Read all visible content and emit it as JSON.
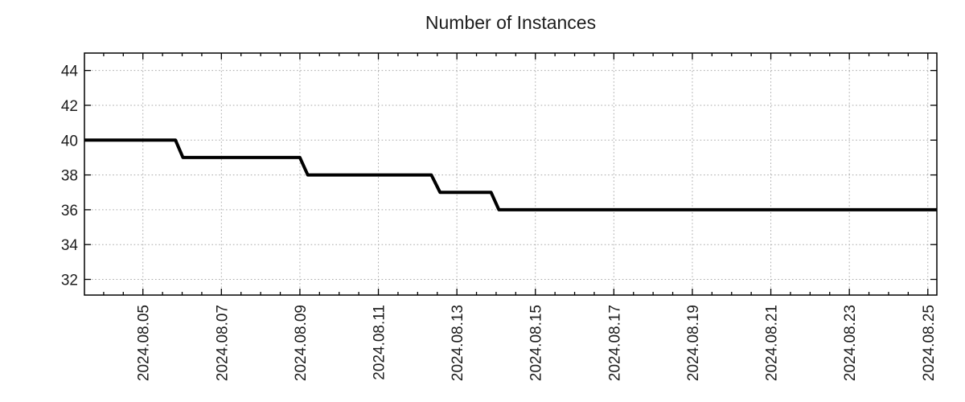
{
  "chart_data": {
    "type": "line",
    "subtype": "step",
    "title": "Number of Instances",
    "legend": {
      "visible": false
    },
    "grid": {
      "visible": true,
      "style": "dotted",
      "color": "#a9a9a9"
    },
    "x_axis": {
      "kind": "time",
      "minor_tick_step_days": 0.5,
      "range_days_august_2024": [
        3.51,
        25.23
      ],
      "ticks": [
        {
          "label": "2024.08.05",
          "day": 5
        },
        {
          "label": "2024.08.07",
          "day": 7
        },
        {
          "label": "2024.08.09",
          "day": 9
        },
        {
          "label": "2024.08.11",
          "day": 11
        },
        {
          "label": "2024.08.13",
          "day": 13
        },
        {
          "label": "2024.08.15",
          "day": 15
        },
        {
          "label": "2024.08.17",
          "day": 17
        },
        {
          "label": "2024.08.19",
          "day": 19
        },
        {
          "label": "2024.08.21",
          "day": 21
        },
        {
          "label": "2024.08.23",
          "day": 23
        },
        {
          "label": "2024.08.25",
          "day": 25
        }
      ]
    },
    "y_axis": {
      "range": [
        31.1,
        45.0
      ],
      "ticks": [
        {
          "label": "44",
          "value": 44
        },
        {
          "label": "42",
          "value": 42
        },
        {
          "label": "40",
          "value": 40
        },
        {
          "label": "38",
          "value": 38
        },
        {
          "label": "36",
          "value": 36
        },
        {
          "label": "34",
          "value": 34
        },
        {
          "label": "32",
          "value": 32
        }
      ]
    },
    "series": [
      {
        "name": "Number of Instances",
        "color": "#000000",
        "line_width": 4,
        "points_format": "[day_of_august_2024, value]",
        "points": [
          [
            3.51,
            40
          ],
          [
            5.83,
            40
          ],
          [
            6.02,
            39
          ],
          [
            9.0,
            39
          ],
          [
            9.2,
            38
          ],
          [
            12.35,
            38
          ],
          [
            12.57,
            37
          ],
          [
            13.87,
            37
          ],
          [
            14.07,
            36
          ],
          [
            25.23,
            36
          ]
        ]
      }
    ]
  }
}
